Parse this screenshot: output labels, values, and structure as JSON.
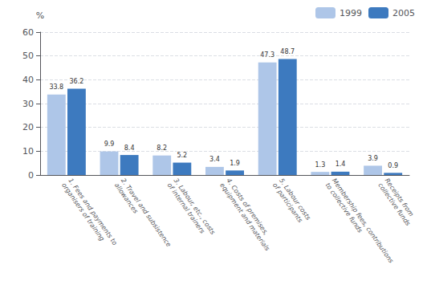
{
  "chart_data": {
    "type": "bar",
    "ylabel": "%",
    "categories": [
      "1. Fees and payments to\norganisers of training",
      "2. Travel and subsistence\nallowances",
      "3. Labour, etc., costs\nof internal trainers",
      "4. Costs of premises,\nequipment and materials",
      "5. Labour costs\nof participants",
      "Membership fees, contributions\nto collective funds",
      "Receipts from\ncollective funds"
    ],
    "series": [
      {
        "name": "1999",
        "color": "#aec6e8",
        "values": [
          33.8,
          9.9,
          8.2,
          3.4,
          47.3,
          1.3,
          3.9
        ]
      },
      {
        "name": "2005",
        "color": "#3d7abf",
        "values": [
          36.2,
          8.4,
          5.2,
          1.9,
          48.7,
          1.4,
          0.9
        ]
      }
    ],
    "ylim": [
      0,
      60
    ],
    "yticks": [
      0,
      10,
      20,
      30,
      40,
      50,
      60
    ],
    "grid": true,
    "legend": "upper right",
    "data_labels": true
  }
}
